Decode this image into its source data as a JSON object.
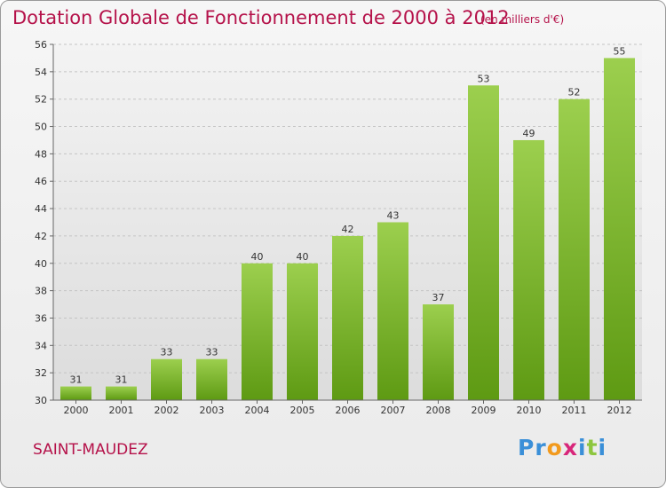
{
  "title": "Dotation Globale de Fonctionnement de 2000 à 2012",
  "unit_note": "(en milliers d'€)",
  "commune": "SAINT-MAUDEZ",
  "logo": {
    "letters": [
      "P",
      "r",
      "o",
      "x",
      "i",
      "t",
      "i"
    ],
    "colors": [
      "#3a8fd8",
      "#3a8fd8",
      "#f29a1d",
      "#d8267a",
      "#3a8fd8",
      "#8dc63f",
      "#3a8fd8"
    ]
  },
  "colors": {
    "accent": "#b5124a",
    "bar_light": "#9ccf4e",
    "bar_dark": "#5e9a13"
  },
  "chart_data": {
    "type": "bar",
    "title": "Dotation Globale de Fonctionnement de 2000 à 2012",
    "unit": "(en milliers d'€)",
    "categories": [
      "2000",
      "2001",
      "2002",
      "2003",
      "2004",
      "2005",
      "2006",
      "2007",
      "2008",
      "2009",
      "2010",
      "2011",
      "2012"
    ],
    "values": [
      31,
      31,
      33,
      33,
      40,
      40,
      42,
      43,
      37,
      53,
      49,
      52,
      55
    ],
    "ylim": [
      30,
      56
    ],
    "yticks": [
      30,
      32,
      34,
      36,
      38,
      40,
      42,
      44,
      46,
      48,
      50,
      52,
      54,
      56
    ],
    "grid": true,
    "xlabel": "",
    "ylabel": ""
  }
}
